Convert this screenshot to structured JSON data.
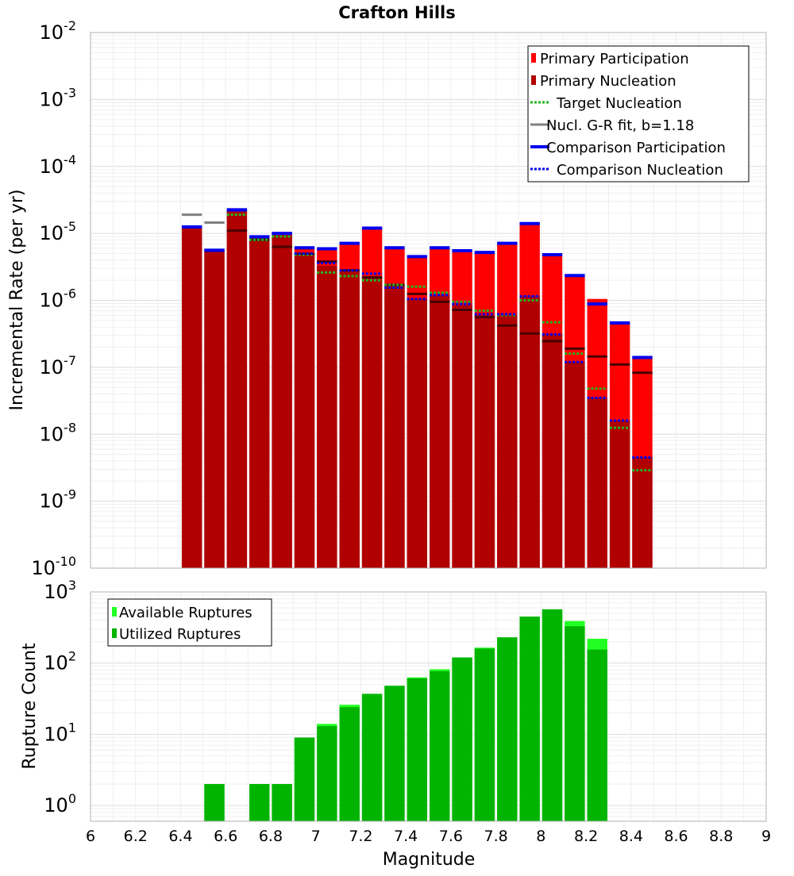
{
  "chart_data": [
    {
      "type": "bar",
      "title": "Crafton Hills",
      "xlabel": "",
      "ylabel": "Incremental Rate (per yr)",
      "xlim": [
        6,
        9
      ],
      "ylim": [
        1e-10,
        0.01
      ],
      "yscale": "log",
      "grid": true,
      "legend_position": "top-right",
      "y_ticks": [
        {
          "base": "10",
          "exp": "-10",
          "value": 1e-10
        },
        {
          "base": "10",
          "exp": "-9",
          "value": 1e-09
        },
        {
          "base": "10",
          "exp": "-8",
          "value": 1e-08
        },
        {
          "base": "10",
          "exp": "-7",
          "value": 1e-07
        },
        {
          "base": "10",
          "exp": "-6",
          "value": 1e-06
        },
        {
          "base": "10",
          "exp": "-5",
          "value": 1e-05
        },
        {
          "base": "10",
          "exp": "-4",
          "value": 0.0001
        },
        {
          "base": "10",
          "exp": "-3",
          "value": 0.001
        },
        {
          "base": "10",
          "exp": "-2",
          "value": 0.01
        }
      ],
      "bin_width": 0.1,
      "bin_centers": [
        6.45,
        6.55,
        6.65,
        6.75,
        6.85,
        6.95,
        7.05,
        7.15,
        7.25,
        7.35,
        7.45,
        7.55,
        7.65,
        7.75,
        7.85,
        7.95,
        8.05,
        8.15,
        8.25,
        8.35,
        8.45
      ],
      "legend": [
        {
          "label": "Primary Participation",
          "color": "#ff0000",
          "style": "bar"
        },
        {
          "label": "Primary Nucleation",
          "color": "#b00000",
          "style": "bar"
        },
        {
          "label": "Target Nucleation",
          "color": "#22b822",
          "style": "dotted"
        },
        {
          "label": "Nucl. G-R fit, b=1.18",
          "color": "#808080",
          "style": "solid"
        },
        {
          "label": "Comparison Participation",
          "color": "#0000ee",
          "style": "solid"
        },
        {
          "label": "Comparison Nucleation",
          "color": "#0000ee",
          "style": "dotted"
        }
      ],
      "series": [
        {
          "name": "Primary Participation",
          "color": "#ff0000",
          "values": [
            1.25e-05,
            5.5e-06,
            2.2e-05,
            8.8e-06,
            1e-05,
            6e-06,
            5.8e-06,
            7e-06,
            1.2e-05,
            6e-06,
            4.5e-06,
            6e-06,
            5.5e-06,
            5.2e-06,
            7e-06,
            1.4e-05,
            4.8e-06,
            2.3e-06,
            1.05e-06,
            4.6e-07,
            1.4e-07
          ]
        },
        {
          "name": "Primary Nucleation",
          "color": "#b00000",
          "values": [
            1.25e-05,
            5.5e-06,
            2.2e-05,
            8.8e-06,
            1e-05,
            5e-06,
            3.3e-06,
            2.7e-06,
            2.3e-06,
            1.65e-06,
            1.05e-06,
            1.2e-06,
            8.5e-07,
            6e-07,
            6e-07,
            1.15e-06,
            3.1e-07,
            1.2e-07,
            3.5e-08,
            1.6e-08,
            4.5e-09
          ]
        },
        {
          "name": "Target Nucleation",
          "color": "#22b822",
          "values": [
            null,
            null,
            1.9e-05,
            8e-06,
            9e-06,
            4.8e-06,
            2.6e-06,
            2.3e-06,
            2e-06,
            1.7e-06,
            1.6e-06,
            1.3e-06,
            9.5e-07,
            7e-07,
            6e-07,
            1e-06,
            4.7e-07,
            1.6e-07,
            4.8e-08,
            1.25e-08,
            2.9e-09
          ]
        },
        {
          "name": "Nucl. G-R fit, b=1.18",
          "color": "#808080",
          "values": [
            1.9e-05,
            1.45e-05,
            1.1e-05,
            8e-06,
            6.3e-06,
            4.9e-06,
            3.8e-06,
            2.8e-06,
            2.2e-06,
            1.7e-06,
            1.25e-06,
            9.5e-07,
            7.2e-07,
            5.6e-07,
            4.2e-07,
            3.2e-07,
            2.45e-07,
            1.9e-07,
            1.45e-07,
            1.1e-07,
            8.3e-08
          ]
        },
        {
          "name": "Comparison Participation",
          "color": "#0000ee",
          "values": [
            1.25e-05,
            5.6e-06,
            2.25e-05,
            8.9e-06,
            1e-05,
            6.1e-06,
            5.9e-06,
            7.1e-06,
            1.2e-05,
            6.1e-06,
            4.5e-06,
            6.1e-06,
            5.5e-06,
            5.2e-06,
            7.1e-06,
            1.4e-05,
            4.8e-06,
            2.35e-06,
            8.8e-07,
            4.6e-07,
            1.4e-07
          ]
        },
        {
          "name": "Comparison Nucleation",
          "color": "#0000ee",
          "values": [
            1.25e-05,
            5.5e-06,
            2.2e-05,
            8.8e-06,
            1e-05,
            5e-06,
            3.6e-06,
            2.8e-06,
            2.5e-06,
            1.55e-06,
            1.05e-06,
            1.2e-06,
            8.8e-07,
            6.2e-07,
            6.2e-07,
            1.15e-06,
            3.1e-07,
            1.2e-07,
            3.5e-08,
            1.6e-08,
            4.5e-09
          ]
        }
      ]
    },
    {
      "type": "bar",
      "title": "",
      "xlabel": "Magnitude",
      "ylabel": "Rupture Count",
      "xlim": [
        6,
        9
      ],
      "ylim": [
        0.6,
        1000
      ],
      "yscale": "log",
      "grid": true,
      "legend_position": "top-left",
      "x_ticks": [
        "6",
        "6.2",
        "6.4",
        "6.6",
        "6.8",
        "7",
        "7.2",
        "7.4",
        "7.6",
        "7.8",
        "8",
        "8.2",
        "8.4",
        "8.6",
        "8.8",
        "9"
      ],
      "x_tick_values": [
        6,
        6.2,
        6.4,
        6.6,
        6.8,
        7,
        7.2,
        7.4,
        7.6,
        7.8,
        8,
        8.2,
        8.4,
        8.6,
        8.8,
        9
      ],
      "y_ticks": [
        {
          "base": "10",
          "exp": "0",
          "value": 1
        },
        {
          "base": "10",
          "exp": "1",
          "value": 10
        },
        {
          "base": "10",
          "exp": "2",
          "value": 100
        },
        {
          "base": "10",
          "exp": "3",
          "value": 1000
        }
      ],
      "bin_width": 0.1,
      "bin_centers": [
        6.55,
        6.75,
        6.85,
        6.95,
        7.05,
        7.15,
        7.25,
        7.35,
        7.45,
        7.55,
        7.65,
        7.75,
        7.85,
        7.95,
        8.05,
        8.15,
        8.25
      ],
      "legend": [
        {
          "label": "Available Ruptures",
          "color": "#22ff22",
          "style": "bar"
        },
        {
          "label": "Utilized Ruptures",
          "color": "#00b400",
          "style": "bar"
        }
      ],
      "series": [
        {
          "name": "Available Ruptures",
          "color": "#22ff22",
          "values": [
            2,
            2,
            2,
            9,
            14,
            26,
            37,
            48,
            63,
            82,
            120,
            165,
            230,
            450,
            570,
            390,
            220
          ]
        },
        {
          "name": "Utilized Ruptures",
          "color": "#00b400",
          "values": [
            2,
            2,
            2,
            9,
            13,
            24,
            37,
            48,
            61,
            77,
            120,
            160,
            230,
            450,
            570,
            330,
            155
          ]
        }
      ]
    }
  ]
}
